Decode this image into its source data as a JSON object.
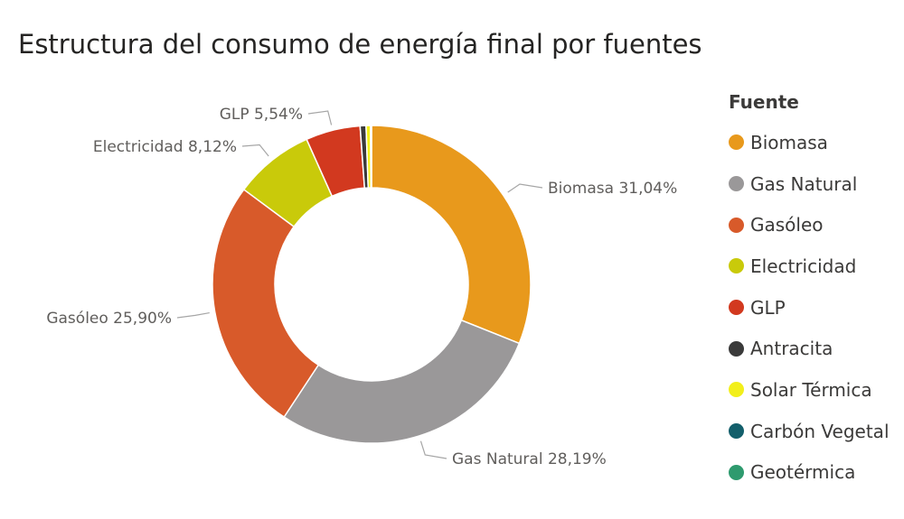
{
  "chart_data": {
    "type": "pie",
    "title": "Estructura del consumo de energía final por fuentes",
    "legend_title": "Fuente",
    "legend_position": "right",
    "slices": [
      {
        "name": "Biomasa",
        "value": 31.04,
        "label": "Biomasa 31,04%",
        "color": "#e8991c"
      },
      {
        "name": "Gas Natural",
        "value": 28.19,
        "label": "Gas Natural 28,19%",
        "color": "#9a9899"
      },
      {
        "name": "Gasóleo",
        "value": 25.9,
        "label": "Gasóleo 25,90%",
        "color": "#d85a2a"
      },
      {
        "name": "Electricidad",
        "value": 8.12,
        "label": "Electricidad 8,12%",
        "color": "#c9ca0a"
      },
      {
        "name": "GLP",
        "value": 5.54,
        "label": "GLP 5,54%",
        "color": "#d2391f"
      },
      {
        "name": "Antracita",
        "value": 0.6,
        "label": "",
        "color": "#3a3a3a"
      },
      {
        "name": "Solar Térmica",
        "value": 0.45,
        "label": "",
        "color": "#f2ef1b"
      },
      {
        "name": "Carbón Vegetal",
        "value": 0.05,
        "label": "",
        "color": "#135f6b"
      },
      {
        "name": "Geotérmica",
        "value": 0.05,
        "label": "",
        "color": "#2e9a6e"
      }
    ]
  }
}
